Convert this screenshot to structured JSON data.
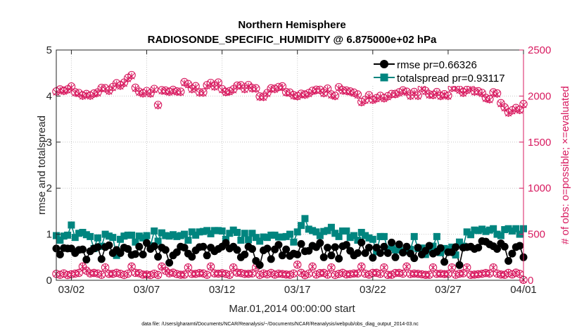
{
  "chart_data": {
    "type": "line",
    "title": "Northern Hemisphere",
    "subtitle": "RADIOSONDE_SPECIFIC_HUMIDITY @ 6.875000e+02 hPa",
    "xlabel": "Mar.01,2014 00:00:00 start",
    "ylabel_left": "rmse and totalspread",
    "ylabel_right": "# of obs: o=possible; ×=evaluated",
    "footnote": "data file: /Users/gharamti/Documents/NCAR/Reanalysis/~/Documents/NCAR/Reanalysis/webpub/obs_diag_output_2014-03.nc",
    "x_range": [
      1.0,
      32.0
    ],
    "x_ticks": [
      {
        "x": 2,
        "label": "03/02"
      },
      {
        "x": 7,
        "label": "03/07"
      },
      {
        "x": 12,
        "label": "03/12"
      },
      {
        "x": 17,
        "label": "03/17"
      },
      {
        "x": 22,
        "label": "03/22"
      },
      {
        "x": 27,
        "label": "03/27"
      },
      {
        "x": 32,
        "label": "04/01"
      }
    ],
    "y_left_range": [
      0,
      5
    ],
    "y_left_ticks": [
      "0",
      "1",
      "2",
      "3",
      "4",
      "5"
    ],
    "y_right_range": [
      0,
      2500
    ],
    "y_right_ticks": [
      "0",
      "500",
      "1000",
      "1500",
      "2000",
      "2500"
    ],
    "colors": {
      "rmse": "#000000",
      "spread": "#00857f",
      "obs": "#d81b60"
    },
    "legend": [
      {
        "label": "rmse pr=0.66326",
        "color": "#000000"
      },
      {
        "label": "totalspread pr=0.93117",
        "color": "#00857f"
      }
    ],
    "x": [
      1.0,
      1.25,
      1.5,
      1.75,
      2.0,
      2.25,
      2.5,
      2.75,
      3.0,
      3.25,
      3.5,
      3.75,
      4.0,
      4.25,
      4.5,
      4.75,
      5.0,
      5.25,
      5.5,
      5.75,
      6.0,
      6.25,
      6.5,
      6.75,
      7.0,
      7.25,
      7.5,
      7.75,
      8.0,
      8.25,
      8.5,
      8.75,
      9.0,
      9.25,
      9.5,
      9.75,
      10.0,
      10.25,
      10.5,
      10.75,
      11.0,
      11.25,
      11.5,
      11.75,
      12.0,
      12.25,
      12.5,
      12.75,
      13.0,
      13.25,
      13.5,
      13.75,
      14.0,
      14.25,
      14.5,
      14.75,
      15.0,
      15.25,
      15.5,
      15.75,
      16.0,
      16.25,
      16.5,
      16.75,
      17.0,
      17.25,
      17.5,
      17.75,
      18.0,
      18.25,
      18.5,
      18.75,
      19.0,
      19.25,
      19.5,
      19.75,
      20.0,
      20.25,
      20.5,
      20.75,
      21.0,
      21.25,
      21.5,
      21.75,
      22.0,
      22.25,
      22.5,
      22.75,
      23.0,
      23.25,
      23.5,
      23.75,
      24.0,
      24.25,
      24.5,
      24.75,
      25.0,
      25.25,
      25.5,
      25.75,
      26.0,
      26.25,
      26.5,
      26.75,
      27.0,
      27.25,
      27.5,
      27.75,
      28.0,
      28.25,
      28.5,
      28.75,
      29.0,
      29.25,
      29.5,
      29.75,
      30.0,
      30.25,
      30.5,
      30.75,
      31.0,
      31.25,
      31.5,
      31.75,
      32.0
    ],
    "rmse": [
      0.69,
      0.56,
      0.7,
      0.69,
      0.69,
      0.59,
      0.66,
      0.67,
      0.45,
      0.63,
      0.69,
      0.72,
      0.46,
      0.72,
      0.76,
      0.59,
      0.66,
      0.59,
      0.71,
      0.68,
      0.55,
      0.57,
      0.73,
      0.56,
      0.81,
      0.68,
      0.74,
      0.51,
      0.71,
      0.66,
      0.38,
      0.54,
      0.61,
      0.73,
      0.71,
      0.58,
      0.51,
      0.65,
      0.72,
      0.73,
      0.54,
      0.71,
      0.63,
      0.68,
      0.73,
      0.81,
      0.69,
      0.73,
      0.66,
      0.5,
      0.56,
      0.73,
      0.68,
      0.42,
      0.33,
      0.65,
      0.69,
      0.46,
      0.67,
      0.77,
      0.54,
      0.67,
      0.53,
      0.58,
      0.56,
      0.79,
      0.63,
      0.64,
      0.75,
      0.72,
      0.81,
      0.5,
      0.71,
      0.54,
      0.72,
      0.47,
      0.74,
      0.77,
      0.64,
      0.54,
      0.59,
      0.82,
      0.59,
      0.71,
      0.49,
      0.71,
      0.59,
      0.73,
      0.59,
      0.82,
      0.5,
      0.78,
      0.6,
      0.73,
      0.58,
      0.48,
      0.71,
      0.56,
      0.64,
      0.75,
      0.58,
      0.62,
      0.7,
      0.4,
      0.61,
      0.61,
      0.72,
      0.33,
      0.71,
      0.72,
      0.73,
      0.68,
      0.71,
      0.85,
      0.84,
      0.78,
      0.74,
      0.68,
      0.8,
      0.73,
      0.42,
      0.58,
      0.72,
      0.75,
      0.5
    ],
    "totalspread": [
      0.97,
      0.87,
      0.96,
      0.98,
      1.2,
      0.93,
      1.02,
      1.04,
      0.99,
      0.95,
      0.69,
      0.92,
      0.74,
      1.0,
      0.96,
      0.93,
      0.54,
      0.89,
      0.96,
      0.98,
      0.98,
      0.83,
      0.96,
      0.92,
      0.97,
      0.75,
      1.07,
      0.85,
      1.03,
      0.97,
      0.96,
      0.99,
      0.95,
      0.97,
      1.0,
      0.87,
      1.05,
      0.98,
      1.05,
      1.06,
      1.08,
      1.01,
      1.08,
      1.08,
      1.07,
      0.89,
      1.02,
      1.09,
      1.04,
      0.87,
      1.02,
      0.88,
      1.02,
      0.93,
      0.85,
      0.94,
      0.93,
      0.98,
      0.98,
      0.94,
      0.94,
      0.95,
      1.0,
      0.83,
      1.05,
      1.19,
      1.34,
      1.11,
      1.08,
      1.05,
      0.97,
      1.06,
      1.08,
      1.15,
      1.02,
      0.95,
      1.07,
      1.07,
      0.93,
      0.97,
      0.87,
      1.04,
      0.97,
      0.92,
      0.89,
      0.62,
      0.95,
      0.95,
      0.67,
      0.71,
      0.66,
      0.66,
      0.62,
      0.66,
      0.67,
      0.95,
      0.69,
      0.7,
      0.56,
      0.67,
      0.74,
      0.95,
      0.6,
      0.69,
      0.67,
      0.72,
      0.55,
      0.83,
      0.74,
      1.05,
      0.99,
      1.09,
      1.08,
      1.11,
      1.06,
      1.09,
      1.12,
      1.0,
      0.97,
      1.1,
      1.12,
      1.07,
      1.12,
      1.0,
      1.12
    ],
    "obs_possible": [
      2051,
      2073,
      2059,
      2073,
      2104,
      2042,
      2034,
      2007,
      2023,
      2007,
      2029,
      2040,
      2089,
      2086,
      2061,
      2099,
      2140,
      2116,
      2146,
      2197,
      2228,
      2091,
      2048,
      2032,
      2055,
      2031,
      2078,
      1904,
      2064,
      2060,
      2049,
      2068,
      2052,
      2048,
      2152,
      2131,
      2079,
      2108,
      2042,
      2041,
      2119,
      2143,
      2107,
      2147,
      2076,
      2046,
      2054,
      2074,
      2114,
      2118,
      2079,
      2120,
      2087,
      2085,
      1996,
      1994,
      2034,
      2084,
      2080,
      2099,
      2106,
      2044,
      2038,
      2010,
      2001,
      2026,
      2018,
      2033,
      2058,
      2069,
      2068,
      2035,
      2081,
      2018,
      2004,
      2097,
      2064,
      2060,
      2051,
      2038,
      2018,
      1937,
      1960,
      2010,
      1962,
      1978,
      2003,
      1979,
      1999,
      2023,
      2024,
      2041,
      2062,
      2048,
      2006,
      2045,
      2006,
      2091,
      2057,
      2019,
      2014,
      2044,
      2004,
      2020,
      2005,
      2092,
      2095,
      2071,
      2039,
      2069,
      2093,
      2052,
      2053,
      2035,
      1981,
      1968,
      2041,
      2030,
      1924,
      1878,
      1823,
      1846,
      1871,
      1853,
      1914
    ],
    "obs_evaluated": [
      2040,
      2062,
      2048,
      2062,
      2092,
      2031,
      2023,
      1996,
      2012,
      1996,
      2018,
      2029,
      2078,
      2075,
      2050,
      2088,
      2128,
      2104,
      2134,
      2185,
      2215,
      2080,
      2037,
      2021,
      2044,
      2020,
      2067,
      1894,
      2053,
      2049,
      2038,
      2057,
      2041,
      2037,
      2140,
      2119,
      2068,
      2096,
      2031,
      2030,
      2107,
      2131,
      2095,
      2135,
      2065,
      2035,
      2043,
      2063,
      2102,
      2106,
      2068,
      2108,
      2076,
      2074,
      1985,
      1983,
      2023,
      2073,
      2069,
      2088,
      2094,
      2033,
      2027,
      1999,
      1990,
      2015,
      2007,
      2022,
      2047,
      2058,
      2057,
      2024,
      2070,
      2007,
      1993,
      2085,
      2053,
      2049,
      2040,
      2027,
      2007,
      1926,
      1949,
      1999,
      1951,
      1967,
      1992,
      1968,
      1988,
      2012,
      2013,
      2030,
      2051,
      2037,
      1995,
      2034,
      1995,
      2080,
      2046,
      2008,
      2003,
      2033,
      1993,
      2009,
      1994,
      2081,
      2084,
      2060,
      2028,
      2058,
      2082,
      2041,
      2042,
      2024,
      1970,
      1957,
      2030,
      2019,
      1913,
      1868,
      1813,
      1836,
      1860,
      1842,
      1903
    ],
    "obs_low_possible": [
      70,
      60,
      75,
      57,
      65,
      73,
      80,
      150,
      105,
      75,
      80,
      74,
      60,
      140,
      70,
      70,
      81,
      71,
      58,
      72,
      150,
      81,
      77,
      62,
      62,
      57,
      72,
      58,
      150,
      104,
      76,
      83,
      68,
      60,
      62,
      140,
      69,
      70,
      78,
      75,
      60,
      150,
      75,
      72,
      77,
      70,
      59,
      140,
      83,
      79,
      69,
      70,
      75,
      140,
      58,
      74,
      65,
      80,
      62,
      72,
      68,
      63,
      60,
      74,
      170,
      81,
      56,
      73,
      150,
      63,
      78,
      80,
      62,
      140,
      58,
      70,
      81,
      64,
      67,
      74,
      74,
      150,
      72,
      62,
      80,
      81,
      70,
      140,
      59,
      60,
      79,
      80,
      72,
      150,
      68,
      73,
      70,
      65,
      59,
      60,
      140,
      70,
      72,
      67,
      69,
      140,
      61,
      72,
      76,
      140,
      59,
      62,
      66,
      71,
      79,
      74,
      140,
      73,
      63,
      60,
      80,
      64,
      83,
      70,
      5
    ],
    "obs_low_evaluated": [
      69,
      59,
      74,
      56,
      64,
      72,
      79,
      148,
      104,
      74,
      79,
      73,
      59,
      138,
      69,
      69,
      80,
      70,
      57,
      71,
      148,
      80,
      76,
      61,
      61,
      56,
      71,
      57,
      148,
      103,
      75,
      82,
      67,
      59,
      61,
      138,
      68,
      69,
      77,
      74,
      59,
      148,
      74,
      71,
      76,
      69,
      58,
      138,
      82,
      78,
      68,
      69,
      74,
      138,
      57,
      73,
      64,
      79,
      61,
      71,
      67,
      62,
      59,
      73,
      168,
      80,
      55,
      72,
      148,
      62,
      77,
      79,
      61,
      138,
      57,
      69,
      80,
      63,
      66,
      73,
      73,
      148,
      71,
      61,
      79,
      80,
      69,
      138,
      58,
      59,
      78,
      79,
      71,
      148,
      67,
      72,
      69,
      64,
      58,
      59,
      138,
      69,
      71,
      66,
      68,
      138,
      60,
      71,
      75,
      138,
      58,
      61,
      65,
      70,
      78,
      73,
      138,
      72,
      62,
      59,
      79,
      63,
      82,
      69,
      4
    ]
  }
}
